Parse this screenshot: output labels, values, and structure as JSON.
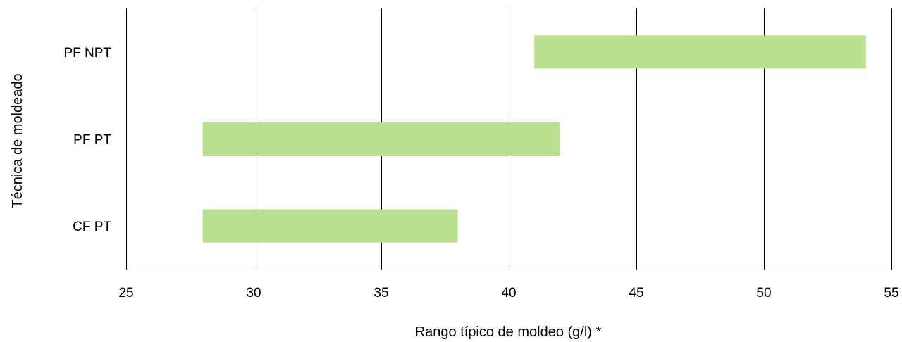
{
  "chart_data": {
    "type": "bar",
    "orientation": "horizontal-range",
    "title": "",
    "xlabel": "Rango típico de moldeo (g/l) *",
    "ylabel": "Técnica de moldeado",
    "xlim": [
      25,
      55
    ],
    "xticks": [
      25,
      30,
      35,
      40,
      45,
      50,
      55
    ],
    "grid": "vertical",
    "legend": "none",
    "bar_color": "#b9e08f",
    "categories": [
      "PF NPT",
      "PF PT",
      "CF PT"
    ],
    "ranges": [
      {
        "category": "PF NPT",
        "start": 41,
        "end": 54
      },
      {
        "category": "PF PT",
        "start": 28,
        "end": 42
      },
      {
        "category": "CF PT",
        "start": 28,
        "end": 38
      }
    ]
  }
}
